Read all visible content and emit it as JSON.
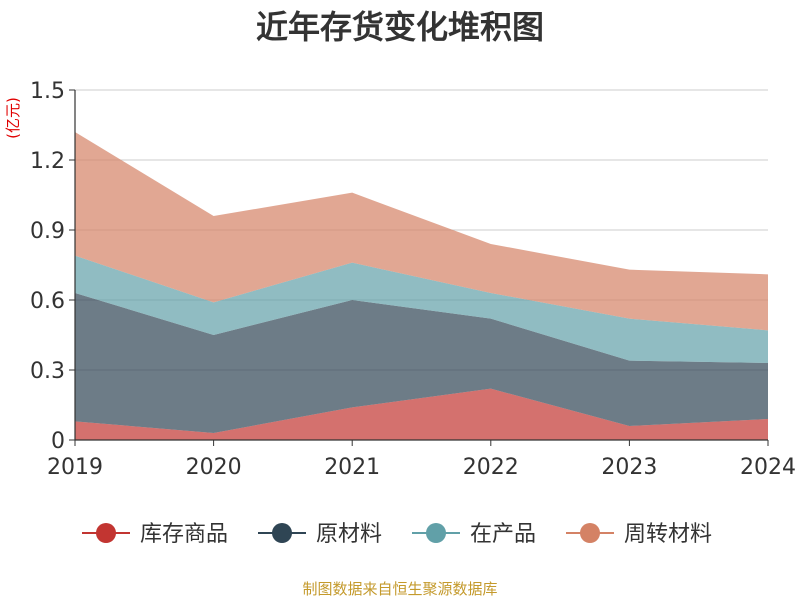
{
  "chart_data": {
    "type": "area",
    "stacked": true,
    "title": "近年存货变化堆积图",
    "unit": "(亿元)",
    "categories": [
      "2019",
      "2020",
      "2021",
      "2022",
      "2023",
      "2024"
    ],
    "y_ticks": [
      "0",
      "0.3",
      "0.6",
      "0.9",
      "1.2",
      "1.5"
    ],
    "ylim": [
      0,
      1.5
    ],
    "grid": true,
    "legend_position": "bottom",
    "series": [
      {
        "name": "库存商品",
        "color": "#c23531",
        "values": [
          0.08,
          0.03,
          0.14,
          0.22,
          0.06,
          0.09
        ]
      },
      {
        "name": "原材料",
        "color": "#2f4554",
        "values": [
          0.55,
          0.42,
          0.46,
          0.3,
          0.28,
          0.24
        ]
      },
      {
        "name": "在产品",
        "color": "#61a0a8",
        "values": [
          0.16,
          0.14,
          0.16,
          0.11,
          0.18,
          0.14
        ]
      },
      {
        "name": "周转材料",
        "color": "#d48265",
        "values": [
          0.53,
          0.37,
          0.3,
          0.21,
          0.21,
          0.24
        ]
      }
    ]
  },
  "footer": "制图数据来自恒生聚源数据库"
}
